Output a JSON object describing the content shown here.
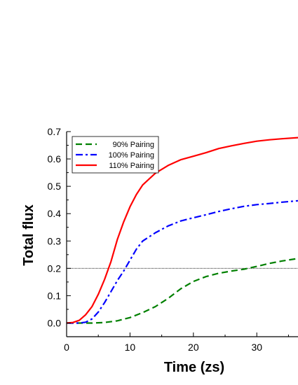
{
  "chart_data": {
    "type": "line",
    "xlabel": "Time (zs)",
    "ylabel": "Total flux",
    "xlim": [
      0,
      36.5
    ],
    "ylim": [
      -0.05,
      0.7
    ],
    "x_ticks": [
      "0",
      "10",
      "20",
      "30"
    ],
    "y_ticks": [
      "0.0",
      "0.1",
      "0.2",
      "0.3",
      "0.4",
      "0.5",
      "0.6",
      "0.7"
    ],
    "reference_line": {
      "y": 0.2,
      "style": "thin dotted black"
    },
    "legend_position": "top-left",
    "series": [
      {
        "name": "90% Pairing",
        "color": "#008000",
        "style": "dashed",
        "points": [
          [
            0,
            0.0
          ],
          [
            2,
            0.0
          ],
          [
            4,
            0.0
          ],
          [
            6,
            0.002
          ],
          [
            8,
            0.008
          ],
          [
            10,
            0.02
          ],
          [
            12,
            0.038
          ],
          [
            14,
            0.06
          ],
          [
            16,
            0.09
          ],
          [
            18,
            0.125
          ],
          [
            20,
            0.152
          ],
          [
            22,
            0.17
          ],
          [
            24,
            0.182
          ],
          [
            26,
            0.19
          ],
          [
            28,
            0.197
          ],
          [
            30,
            0.207
          ],
          [
            32,
            0.218
          ],
          [
            34,
            0.227
          ],
          [
            36.5,
            0.236
          ]
        ]
      },
      {
        "name": "100% Pairing",
        "color": "#0000ff",
        "style": "dash-dot",
        "points": [
          [
            0,
            0.0
          ],
          [
            2,
            0.0
          ],
          [
            3,
            0.003
          ],
          [
            4,
            0.015
          ],
          [
            5,
            0.04
          ],
          [
            6,
            0.075
          ],
          [
            7,
            0.115
          ],
          [
            8,
            0.155
          ],
          [
            9,
            0.19
          ],
          [
            10,
            0.23
          ],
          [
            11,
            0.27
          ],
          [
            12,
            0.3
          ],
          [
            14,
            0.33
          ],
          [
            16,
            0.355
          ],
          [
            18,
            0.373
          ],
          [
            20,
            0.385
          ],
          [
            22,
            0.396
          ],
          [
            24,
            0.408
          ],
          [
            26,
            0.418
          ],
          [
            28,
            0.427
          ],
          [
            30,
            0.433
          ],
          [
            32,
            0.437
          ],
          [
            34,
            0.442
          ],
          [
            36.5,
            0.447
          ]
        ]
      },
      {
        "name": "110% Pairing",
        "color": "#ff0000",
        "style": "solid",
        "points": [
          [
            0,
            0.0
          ],
          [
            1,
            0.002
          ],
          [
            2,
            0.01
          ],
          [
            3,
            0.03
          ],
          [
            4,
            0.06
          ],
          [
            5,
            0.105
          ],
          [
            6,
            0.16
          ],
          [
            7,
            0.225
          ],
          [
            8,
            0.305
          ],
          [
            9,
            0.37
          ],
          [
            10,
            0.425
          ],
          [
            11,
            0.47
          ],
          [
            12,
            0.505
          ],
          [
            14,
            0.548
          ],
          [
            16,
            0.576
          ],
          [
            18,
            0.597
          ],
          [
            20,
            0.61
          ],
          [
            22,
            0.623
          ],
          [
            24,
            0.638
          ],
          [
            26,
            0.648
          ],
          [
            28,
            0.657
          ],
          [
            30,
            0.665
          ],
          [
            32,
            0.67
          ],
          [
            34,
            0.674
          ],
          [
            36.5,
            0.678
          ]
        ]
      }
    ]
  }
}
